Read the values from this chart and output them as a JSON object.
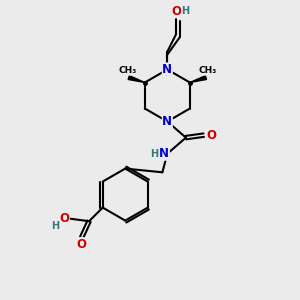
{
  "bg_color": "#ebebeb",
  "atom_colors": {
    "C": "#000000",
    "N": "#0000cc",
    "O": "#cc0000",
    "H": "#337777"
  },
  "bond_color": "#000000",
  "bond_width": 1.5,
  "font_size_atom": 8.5,
  "font_size_small": 7.0,
  "xlim": [
    0,
    10
  ],
  "ylim": [
    0,
    12
  ]
}
